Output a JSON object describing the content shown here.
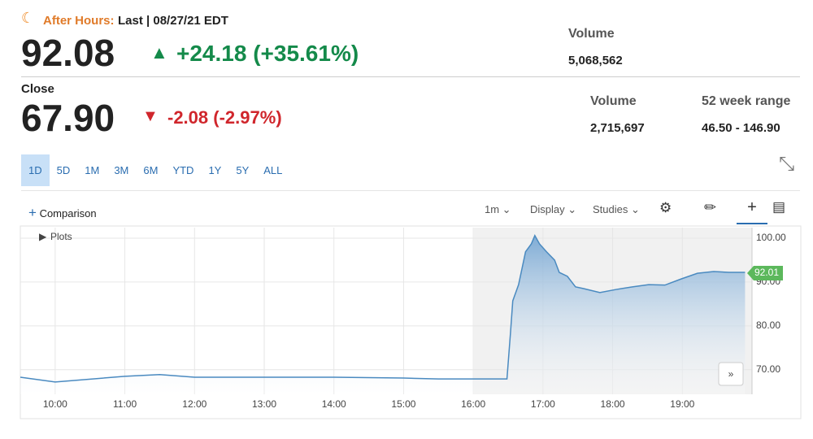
{
  "after_hours": {
    "label": "After Hours:",
    "status": "Last | 08/27/21 EDT",
    "price": "92.08",
    "change": "+24.18",
    "change_pct": "(+35.61%)",
    "volume_label": "Volume",
    "volume": "5,068,562"
  },
  "close": {
    "label": "Close",
    "price": "67.90",
    "change": "-2.08",
    "change_pct": "(-2.97%)",
    "volume_label": "Volume",
    "volume": "2,715,697",
    "range_label": "52 week range",
    "range": "46.50 - 146.90"
  },
  "ranges": [
    "1D",
    "5D",
    "1M",
    "3M",
    "6M",
    "YTD",
    "1Y",
    "5Y",
    "ALL"
  ],
  "toolbar": {
    "comparison": "Comparison",
    "interval": "1m",
    "display": "Display",
    "studies": "Studies"
  },
  "chart_data": {
    "type": "line",
    "legend_toggle": "Plots",
    "color": "#4a8ac0",
    "x": [
      "09:30",
      "10:00",
      "11:00",
      "11:30",
      "12:00",
      "13:00",
      "14:00",
      "15:00",
      "15:30",
      "16:00",
      "16:29",
      "16:32",
      "16:34",
      "16:39",
      "16:45",
      "16:50",
      "16:53",
      "16:57",
      "17:03",
      "17:10",
      "17:14",
      "17:21",
      "17:28",
      "17:35",
      "17:49",
      "18:03",
      "18:17",
      "18:31",
      "18:45",
      "18:59",
      "19:13",
      "19:27",
      "19:40",
      "19:54"
    ],
    "series": [
      {
        "name": "Price",
        "color": "#4a8ac0",
        "values": [
          68.3,
          67.2,
          68.5,
          68.9,
          68.3,
          68.3,
          68.3,
          68.1,
          67.9,
          67.9,
          67.9,
          78.3,
          85.7,
          89.4,
          96.9,
          98.7,
          100.6,
          98.7,
          96.9,
          95.0,
          92.2,
          91.3,
          88.9,
          88.5,
          87.6,
          88.3,
          88.9,
          89.4,
          89.3,
          90.7,
          92.0,
          92.4,
          92.2,
          92.2
        ]
      }
    ],
    "last_price": 92.01,
    "xlim": [
      "09:30",
      "20:00"
    ],
    "xticks": [
      "10:00",
      "11:00",
      "12:00",
      "13:00",
      "14:00",
      "15:00",
      "16:00",
      "17:00",
      "18:00",
      "19:00"
    ],
    "ylim": [
      64.4,
      102.4
    ],
    "yticks": [
      {
        "value": 70,
        "label": "70.00"
      },
      {
        "value": 80,
        "label": "80.00"
      },
      {
        "value": 90,
        "label": "90.00"
      },
      {
        "value": 100,
        "label": "100.00"
      }
    ],
    "grid": true
  }
}
